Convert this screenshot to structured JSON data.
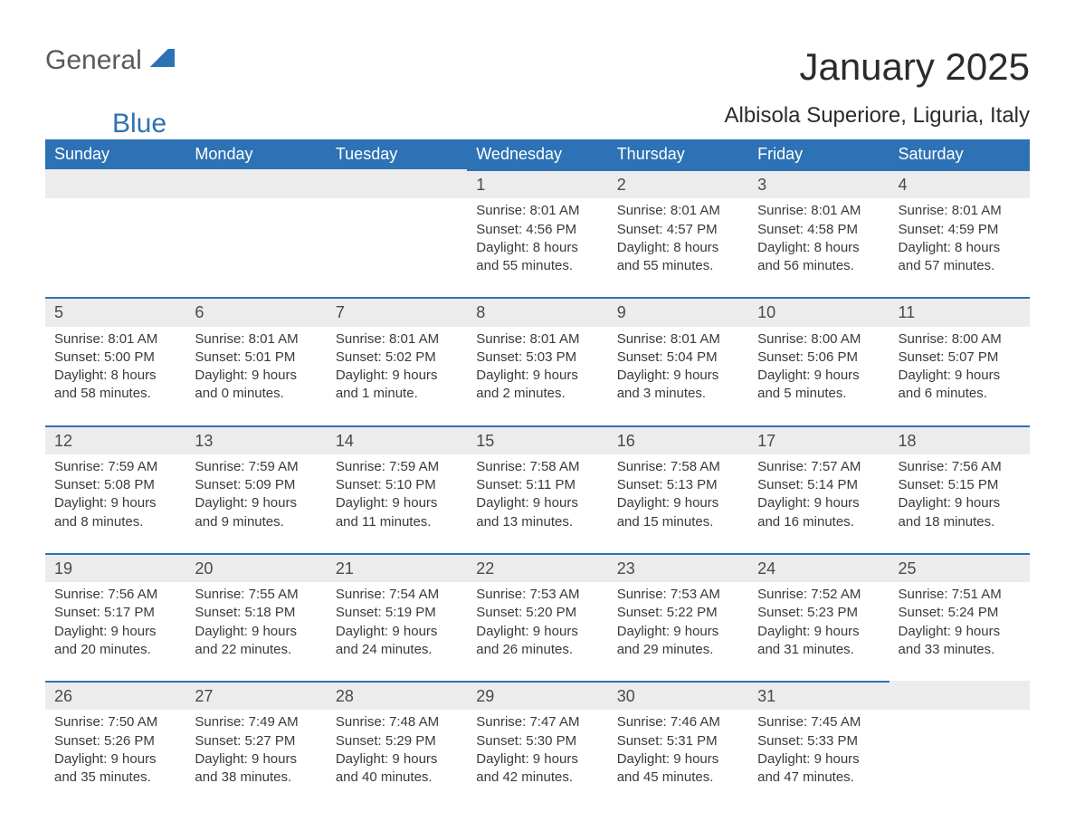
{
  "brand": {
    "part1": "General",
    "part2": "Blue"
  },
  "title": "January 2025",
  "location": "Albisola Superiore, Liguria, Italy",
  "colors": {
    "header_bg": "#2d72b5",
    "header_text": "#ffffff",
    "daynum_bg": "#ececec",
    "daynum_border": "#2d72b5",
    "body_text": "#3a3a3a",
    "page_bg": "#ffffff",
    "logo_gray": "#5a5a5a",
    "logo_blue": "#2d72b5"
  },
  "fonts": {
    "month_title_pt": 42,
    "location_pt": 24,
    "weekday_pt": 18,
    "daynum_pt": 18,
    "body_pt": 15
  },
  "layout": {
    "columns": 7,
    "rows": 5,
    "first_weekday": "Sunday"
  },
  "weekdays": [
    "Sunday",
    "Monday",
    "Tuesday",
    "Wednesday",
    "Thursday",
    "Friday",
    "Saturday"
  ],
  "weeks": [
    [
      null,
      null,
      null,
      {
        "day": "1",
        "sunrise": "Sunrise: 8:01 AM",
        "sunset": "Sunset: 4:56 PM",
        "daylight": "Daylight: 8 hours and 55 minutes."
      },
      {
        "day": "2",
        "sunrise": "Sunrise: 8:01 AM",
        "sunset": "Sunset: 4:57 PM",
        "daylight": "Daylight: 8 hours and 55 minutes."
      },
      {
        "day": "3",
        "sunrise": "Sunrise: 8:01 AM",
        "sunset": "Sunset: 4:58 PM",
        "daylight": "Daylight: 8 hours and 56 minutes."
      },
      {
        "day": "4",
        "sunrise": "Sunrise: 8:01 AM",
        "sunset": "Sunset: 4:59 PM",
        "daylight": "Daylight: 8 hours and 57 minutes."
      }
    ],
    [
      {
        "day": "5",
        "sunrise": "Sunrise: 8:01 AM",
        "sunset": "Sunset: 5:00 PM",
        "daylight": "Daylight: 8 hours and 58 minutes."
      },
      {
        "day": "6",
        "sunrise": "Sunrise: 8:01 AM",
        "sunset": "Sunset: 5:01 PM",
        "daylight": "Daylight: 9 hours and 0 minutes."
      },
      {
        "day": "7",
        "sunrise": "Sunrise: 8:01 AM",
        "sunset": "Sunset: 5:02 PM",
        "daylight": "Daylight: 9 hours and 1 minute."
      },
      {
        "day": "8",
        "sunrise": "Sunrise: 8:01 AM",
        "sunset": "Sunset: 5:03 PM",
        "daylight": "Daylight: 9 hours and 2 minutes."
      },
      {
        "day": "9",
        "sunrise": "Sunrise: 8:01 AM",
        "sunset": "Sunset: 5:04 PM",
        "daylight": "Daylight: 9 hours and 3 minutes."
      },
      {
        "day": "10",
        "sunrise": "Sunrise: 8:00 AM",
        "sunset": "Sunset: 5:06 PM",
        "daylight": "Daylight: 9 hours and 5 minutes."
      },
      {
        "day": "11",
        "sunrise": "Sunrise: 8:00 AM",
        "sunset": "Sunset: 5:07 PM",
        "daylight": "Daylight: 9 hours and 6 minutes."
      }
    ],
    [
      {
        "day": "12",
        "sunrise": "Sunrise: 7:59 AM",
        "sunset": "Sunset: 5:08 PM",
        "daylight": "Daylight: 9 hours and 8 minutes."
      },
      {
        "day": "13",
        "sunrise": "Sunrise: 7:59 AM",
        "sunset": "Sunset: 5:09 PM",
        "daylight": "Daylight: 9 hours and 9 minutes."
      },
      {
        "day": "14",
        "sunrise": "Sunrise: 7:59 AM",
        "sunset": "Sunset: 5:10 PM",
        "daylight": "Daylight: 9 hours and 11 minutes."
      },
      {
        "day": "15",
        "sunrise": "Sunrise: 7:58 AM",
        "sunset": "Sunset: 5:11 PM",
        "daylight": "Daylight: 9 hours and 13 minutes."
      },
      {
        "day": "16",
        "sunrise": "Sunrise: 7:58 AM",
        "sunset": "Sunset: 5:13 PM",
        "daylight": "Daylight: 9 hours and 15 minutes."
      },
      {
        "day": "17",
        "sunrise": "Sunrise: 7:57 AM",
        "sunset": "Sunset: 5:14 PM",
        "daylight": "Daylight: 9 hours and 16 minutes."
      },
      {
        "day": "18",
        "sunrise": "Sunrise: 7:56 AM",
        "sunset": "Sunset: 5:15 PM",
        "daylight": "Daylight: 9 hours and 18 minutes."
      }
    ],
    [
      {
        "day": "19",
        "sunrise": "Sunrise: 7:56 AM",
        "sunset": "Sunset: 5:17 PM",
        "daylight": "Daylight: 9 hours and 20 minutes."
      },
      {
        "day": "20",
        "sunrise": "Sunrise: 7:55 AM",
        "sunset": "Sunset: 5:18 PM",
        "daylight": "Daylight: 9 hours and 22 minutes."
      },
      {
        "day": "21",
        "sunrise": "Sunrise: 7:54 AM",
        "sunset": "Sunset: 5:19 PM",
        "daylight": "Daylight: 9 hours and 24 minutes."
      },
      {
        "day": "22",
        "sunrise": "Sunrise: 7:53 AM",
        "sunset": "Sunset: 5:20 PM",
        "daylight": "Daylight: 9 hours and 26 minutes."
      },
      {
        "day": "23",
        "sunrise": "Sunrise: 7:53 AM",
        "sunset": "Sunset: 5:22 PM",
        "daylight": "Daylight: 9 hours and 29 minutes."
      },
      {
        "day": "24",
        "sunrise": "Sunrise: 7:52 AM",
        "sunset": "Sunset: 5:23 PM",
        "daylight": "Daylight: 9 hours and 31 minutes."
      },
      {
        "day": "25",
        "sunrise": "Sunrise: 7:51 AM",
        "sunset": "Sunset: 5:24 PM",
        "daylight": "Daylight: 9 hours and 33 minutes."
      }
    ],
    [
      {
        "day": "26",
        "sunrise": "Sunrise: 7:50 AM",
        "sunset": "Sunset: 5:26 PM",
        "daylight": "Daylight: 9 hours and 35 minutes."
      },
      {
        "day": "27",
        "sunrise": "Sunrise: 7:49 AM",
        "sunset": "Sunset: 5:27 PM",
        "daylight": "Daylight: 9 hours and 38 minutes."
      },
      {
        "day": "28",
        "sunrise": "Sunrise: 7:48 AM",
        "sunset": "Sunset: 5:29 PM",
        "daylight": "Daylight: 9 hours and 40 minutes."
      },
      {
        "day": "29",
        "sunrise": "Sunrise: 7:47 AM",
        "sunset": "Sunset: 5:30 PM",
        "daylight": "Daylight: 9 hours and 42 minutes."
      },
      {
        "day": "30",
        "sunrise": "Sunrise: 7:46 AM",
        "sunset": "Sunset: 5:31 PM",
        "daylight": "Daylight: 9 hours and 45 minutes."
      },
      {
        "day": "31",
        "sunrise": "Sunrise: 7:45 AM",
        "sunset": "Sunset: 5:33 PM",
        "daylight": "Daylight: 9 hours and 47 minutes."
      },
      null
    ]
  ]
}
